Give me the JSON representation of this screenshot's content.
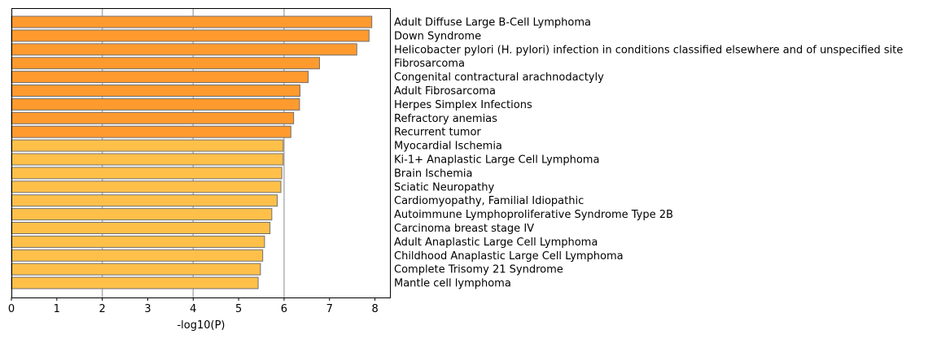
{
  "chart_data": {
    "type": "bar",
    "orientation": "horizontal",
    "xlabel": "-log10(P)",
    "ylabel": "",
    "title": "",
    "xlim": [
      0,
      8.33
    ],
    "xticks": [
      0,
      1,
      2,
      3,
      4,
      5,
      6,
      7,
      8
    ],
    "grid": {
      "x": true,
      "y": false,
      "major_gridlines": [
        2,
        4,
        6
      ]
    },
    "legend": "none",
    "colors": {
      "dark": "#ff9a2e",
      "light": "#ffc04a",
      "edge": "#707070",
      "grid": "#b0b0b0"
    },
    "categories": [
      "Adult Diffuse Large B-Cell Lymphoma",
      "Down Syndrome",
      "Helicobacter pylori (H. pylori) infection in conditions classified elsewhere and of unspecified site",
      "Fibrosarcoma",
      "Congenital contractural arachnodactyly",
      "Adult Fibrosarcoma",
      "Herpes Simplex Infections",
      "Refractory anemias",
      "Recurrent tumor",
      "Myocardial Ischemia",
      "Ki-1+ Anaplastic Large Cell Lymphoma",
      "Brain Ischemia",
      "Sciatic Neuropathy",
      "Cardiomyopathy, Familial Idiopathic",
      "Autoimmune Lymphoproliferative Syndrome Type 2B",
      "Carcinoma breast stage IV",
      "Adult Anaplastic Large Cell Lymphoma",
      "Childhood Anaplastic Large Cell Lymphoma",
      "Complete Trisomy 21 Syndrome",
      "Mantle cell lymphoma"
    ],
    "values": [
      7.93,
      7.87,
      7.6,
      6.78,
      6.53,
      6.35,
      6.34,
      6.21,
      6.15,
      5.98,
      5.98,
      5.95,
      5.93,
      5.85,
      5.73,
      5.69,
      5.57,
      5.53,
      5.48,
      5.43
    ],
    "color_group": [
      "dark",
      "dark",
      "dark",
      "dark",
      "dark",
      "dark",
      "dark",
      "dark",
      "dark",
      "light",
      "light",
      "light",
      "light",
      "light",
      "light",
      "light",
      "light",
      "light",
      "light",
      "light"
    ]
  }
}
